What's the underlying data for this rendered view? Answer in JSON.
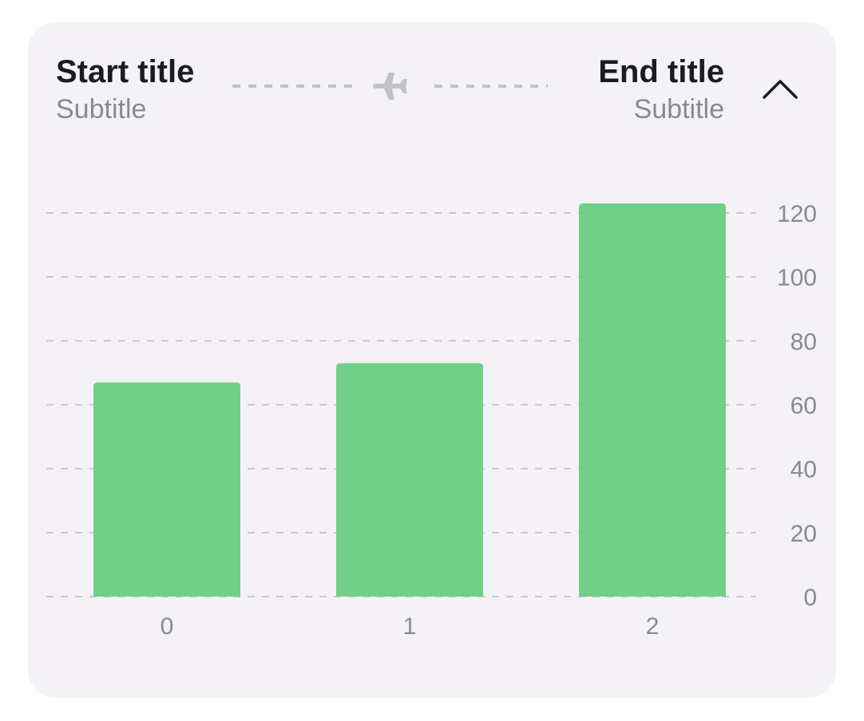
{
  "header": {
    "start_title": "Start title",
    "start_subtitle": "Subtitle",
    "end_title": "End title",
    "end_subtitle": "Subtitle"
  },
  "icons": {
    "route": "airplane-icon",
    "toggle": "chevron-up-icon"
  },
  "colors": {
    "bar": "#72cf87",
    "card_background": "#f4f2f6",
    "title": "#1c1c1e",
    "subtitle": "#8a8a8e",
    "gridline": "#c9c7cc",
    "route": "#c2c1c6"
  },
  "chart_data": {
    "type": "bar",
    "categories": [
      "0",
      "1",
      "2"
    ],
    "values": [
      67,
      73,
      123
    ],
    "y_ticks": [
      0,
      20,
      40,
      60,
      80,
      100,
      120
    ],
    "ylim": [
      0,
      120
    ],
    "y_axis_position": "right",
    "grid": true,
    "title": "",
    "xlabel": "",
    "ylabel": ""
  }
}
